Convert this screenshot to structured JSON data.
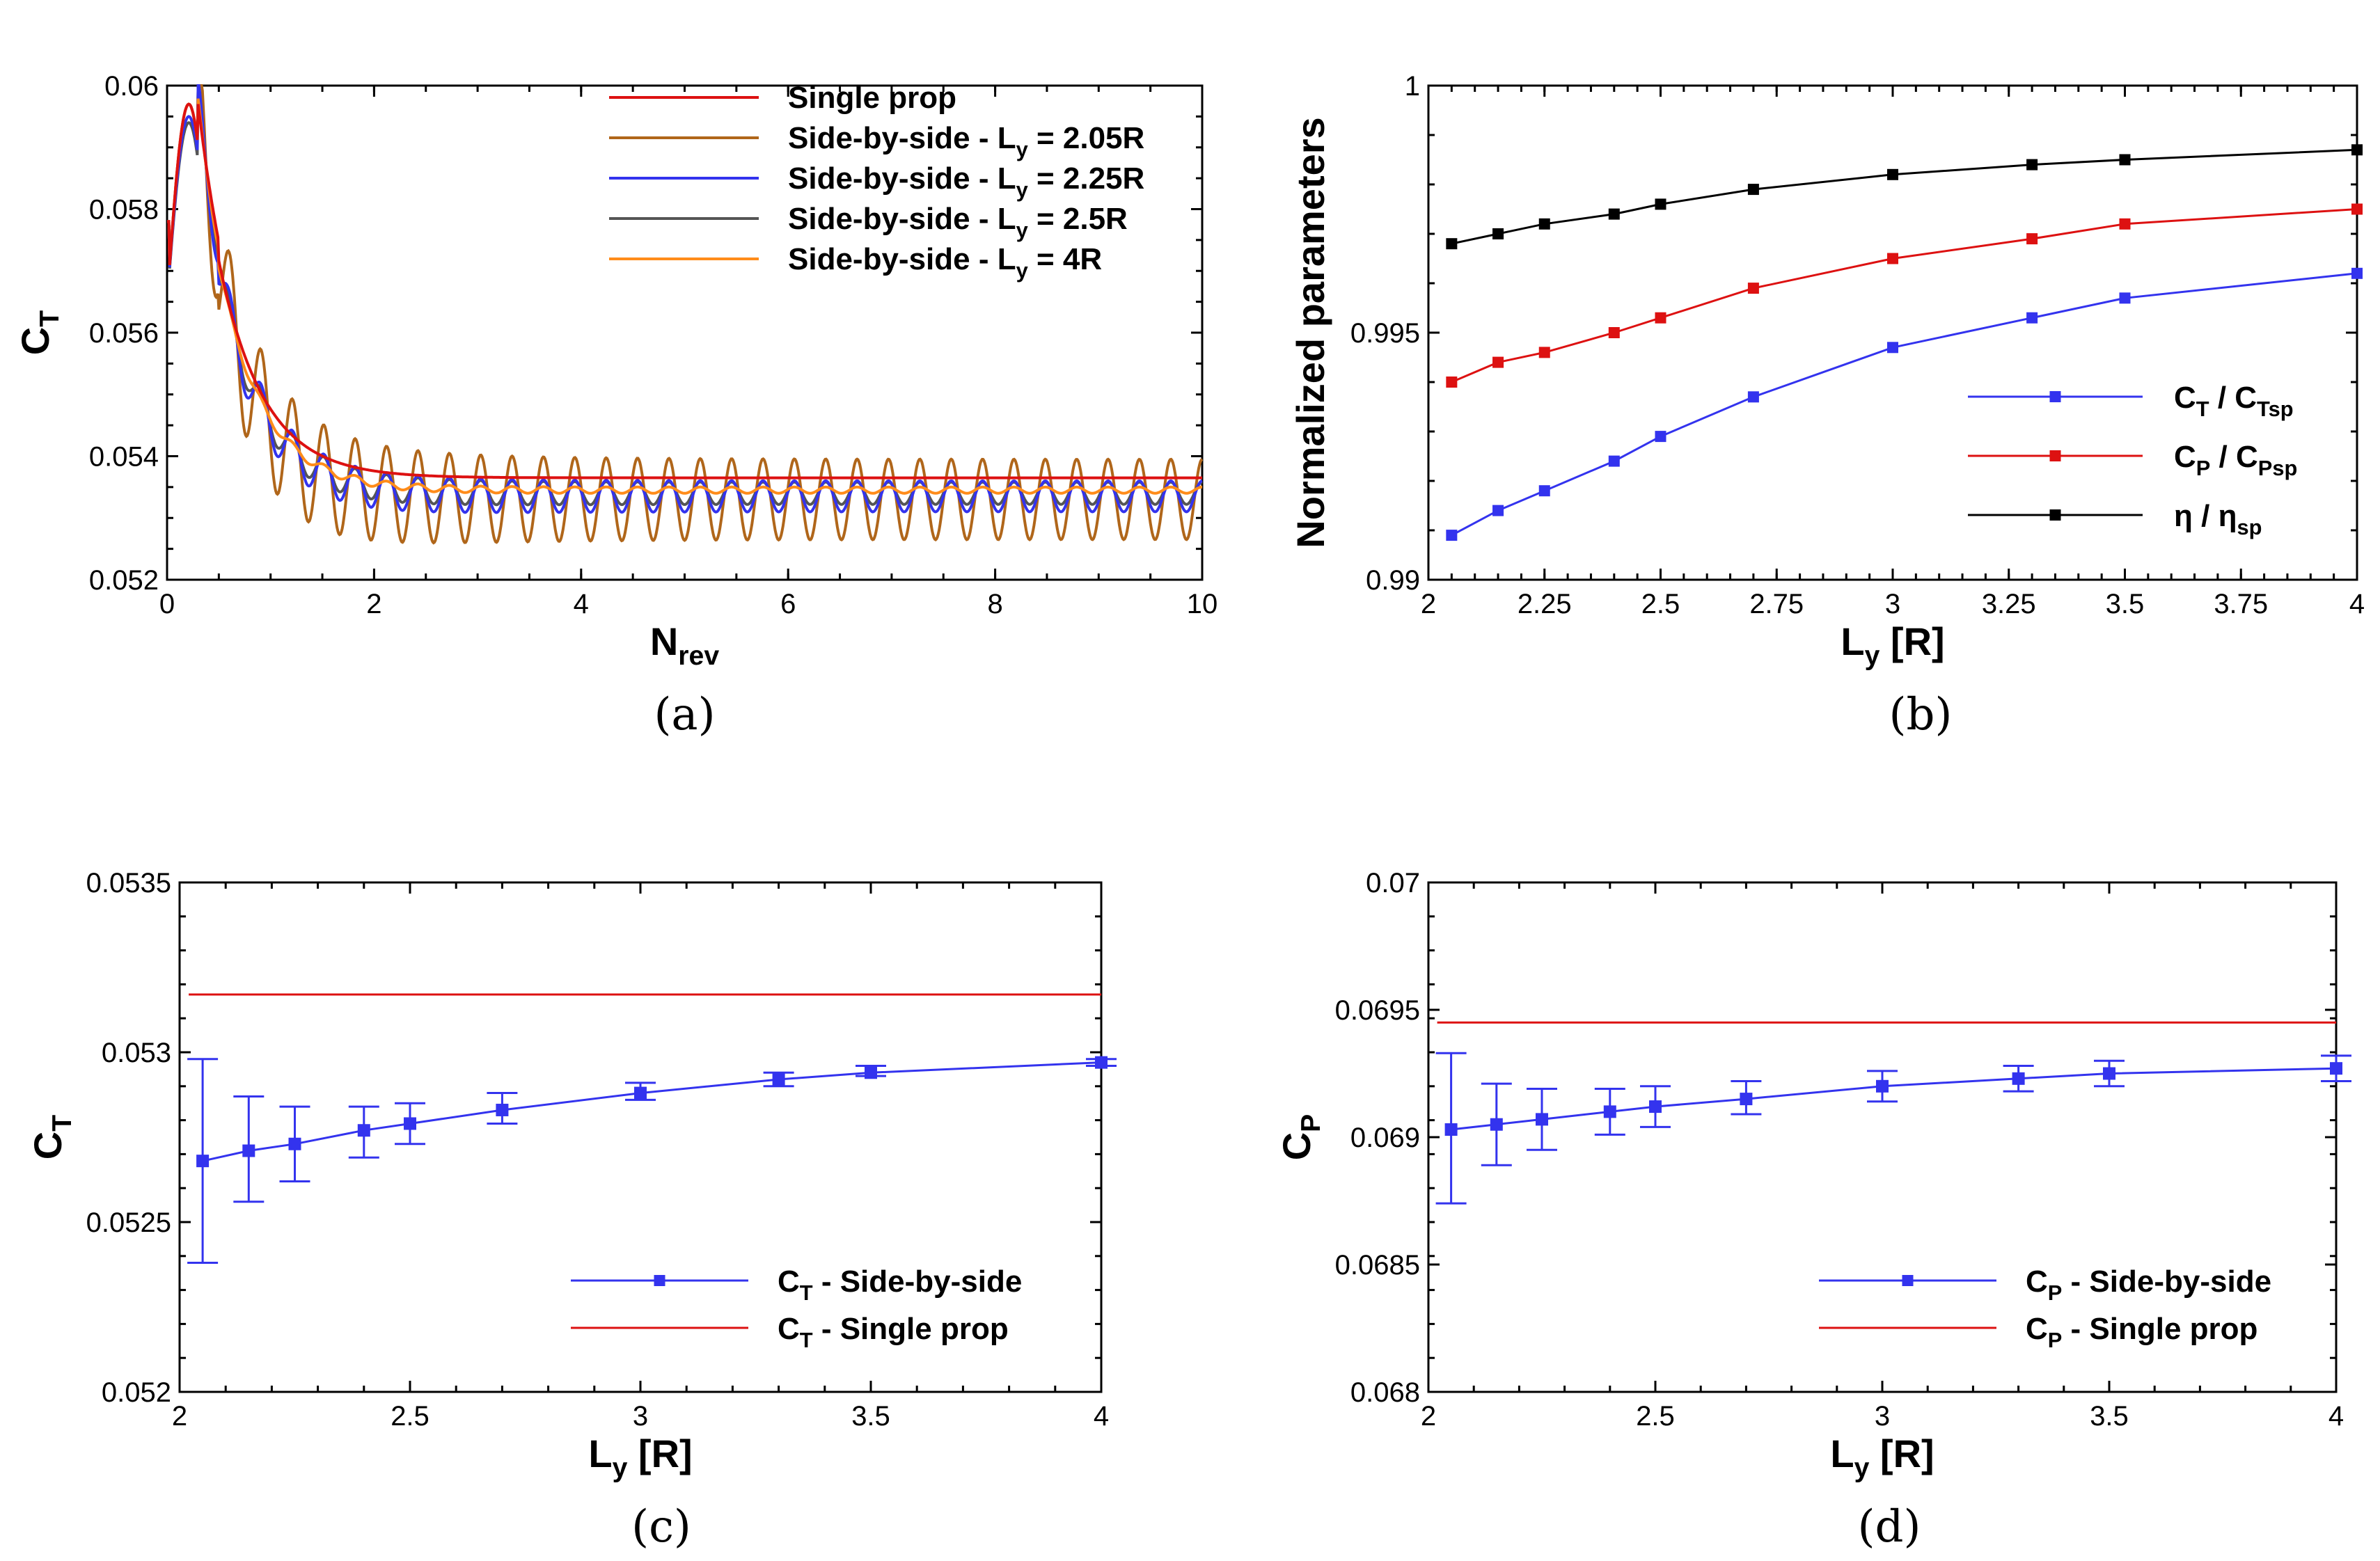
{
  "panels": {
    "a": {
      "caption": "(a)",
      "xlabel": {
        "main": "N",
        "sub": "rev"
      },
      "ylabel": {
        "main": "C",
        "sub": "T"
      },
      "xticks": [
        "0",
        "2",
        "4",
        "6",
        "8",
        "10"
      ],
      "yticks": [
        "0.052",
        "0.054",
        "0.056",
        "0.058",
        "0.06"
      ],
      "legend": [
        {
          "pre": "Single prop",
          "sub": "",
          "post": ""
        },
        {
          "pre": "Side-by-side - L",
          "sub": "y",
          "post": " = 2.05R"
        },
        {
          "pre": "Side-by-side - L",
          "sub": "y",
          "post": " = 2.25R"
        },
        {
          "pre": "Side-by-side - L",
          "sub": "y",
          "post": " = 2.5R"
        },
        {
          "pre": "Side-by-side - L",
          "sub": "y",
          "post": " = 4R"
        }
      ]
    },
    "b": {
      "caption": "(b)",
      "xlabel": {
        "main": "L",
        "sub": "y",
        "post": " [R]"
      },
      "ylabel": {
        "main": "Normalized parameters"
      },
      "xticks": [
        "2",
        "2.25",
        "2.5",
        "2.75",
        "3",
        "3.25",
        "3.5",
        "3.75",
        "4"
      ],
      "yticks": [
        "0.99",
        "0.995",
        "1"
      ],
      "legend": [
        {
          "pre": "C",
          "sub": "T",
          "mid": " / C",
          "sub2": "Tsp"
        },
        {
          "pre": "C",
          "sub": "P",
          "mid": " / C",
          "sub2": "Psp"
        },
        {
          "pre": "η",
          "sub": "",
          "mid": " / η",
          "sub2": "sp"
        }
      ]
    },
    "c": {
      "caption": "(c)",
      "xlabel": {
        "main": "L",
        "sub": "y",
        "post": " [R]"
      },
      "ylabel": {
        "main": "C",
        "sub": "T"
      },
      "xticks": [
        "2",
        "2.5",
        "3",
        "3.5",
        "4"
      ],
      "yticks": [
        "0.052",
        "0.0525",
        "0.053",
        "0.0535"
      ],
      "legend": [
        {
          "pre": "C",
          "sub": "T",
          "post": " - Side-by-side"
        },
        {
          "pre": "C",
          "sub": "T",
          "post": " - Single prop"
        }
      ]
    },
    "d": {
      "caption": "(d)",
      "xlabel": {
        "main": "L",
        "sub": "y",
        "post": " [R]"
      },
      "ylabel": {
        "main": "C",
        "sub": "P"
      },
      "xticks": [
        "2",
        "2.5",
        "3",
        "3.5",
        "4"
      ],
      "yticks": [
        "0.068",
        "0.0685",
        "0.069",
        "0.0695",
        "0.07"
      ],
      "legend": [
        {
          "pre": "C",
          "sub": "P",
          "post": " - Side-by-side"
        },
        {
          "pre": "C",
          "sub": "P",
          "post": " - Single prop"
        }
      ]
    }
  },
  "colors": {
    "red": "#dd1111",
    "brown": "#b0661a",
    "blue": "#3333ee",
    "gray": "#555555",
    "orange": "#ff8c1a",
    "black": "#000000"
  },
  "chart_data": [
    {
      "type": "line",
      "panel": "a",
      "xlim": [
        0,
        10
      ],
      "ylim": [
        0.052,
        0.06
      ],
      "series": [
        {
          "name": "Single prop",
          "color": "red",
          "steady": 0.05365,
          "amp": 0.0,
          "peak": 0.0597
        },
        {
          "name": "Side-by-side - Ly = 2.05R",
          "color": "brown",
          "steady": 0.0533,
          "amp": 0.00065,
          "peak": 0.0597
        },
        {
          "name": "Side-by-side - Ly = 2.25R",
          "color": "blue",
          "steady": 0.05335,
          "amp": 0.00025,
          "peak": 0.0595
        },
        {
          "name": "Side-by-side - Ly = 2.5R",
          "color": "gray",
          "steady": 0.0534,
          "amp": 0.00018,
          "peak": 0.0594
        },
        {
          "name": "Side-by-side - Ly = 4R",
          "color": "orange",
          "steady": 0.05345,
          "amp": 5e-05,
          "peak": 0.0597
        }
      ]
    },
    {
      "type": "line",
      "panel": "b",
      "xlim": [
        2,
        4
      ],
      "ylim": [
        0.99,
        1.0
      ],
      "x": [
        2.05,
        2.15,
        2.25,
        2.4,
        2.5,
        2.7,
        3.0,
        3.3,
        3.5,
        4.0
      ],
      "series": [
        {
          "name": "CT / CTsp",
          "color": "blue",
          "values": [
            0.9909,
            0.9914,
            0.9918,
            0.9924,
            0.9929,
            0.9937,
            0.9947,
            0.9953,
            0.9957,
            0.9962
          ]
        },
        {
          "name": "CP / CPsp",
          "color": "red",
          "values": [
            0.994,
            0.9944,
            0.9946,
            0.995,
            0.9953,
            0.9959,
            0.9965,
            0.9969,
            0.9972,
            0.9975
          ]
        },
        {
          "name": "η / ηsp",
          "color": "black",
          "values": [
            0.9968,
            0.997,
            0.9972,
            0.9974,
            0.9976,
            0.9979,
            0.9982,
            0.9984,
            0.9985,
            0.9987
          ]
        }
      ]
    },
    {
      "type": "line",
      "panel": "c",
      "xlim": [
        2,
        4
      ],
      "ylim": [
        0.052,
        0.0535
      ],
      "x": [
        2.05,
        2.15,
        2.25,
        2.4,
        2.5,
        2.7,
        3.0,
        3.3,
        3.5,
        4.0
      ],
      "series": [
        {
          "name": "CT - Side-by-side",
          "color": "blue",
          "values": [
            0.05268,
            0.05271,
            0.05273,
            0.05277,
            0.05279,
            0.05283,
            0.05288,
            0.05292,
            0.05294,
            0.05297
          ],
          "err_lo": [
            0.05238,
            0.05256,
            0.05262,
            0.05269,
            0.05273,
            0.05279,
            0.05286,
            0.0529,
            0.05293,
            0.05296
          ],
          "err_hi": [
            0.05298,
            0.05287,
            0.05284,
            0.05284,
            0.05285,
            0.05288,
            0.05291,
            0.05294,
            0.05296,
            0.05298
          ]
        },
        {
          "name": "CT - Single prop",
          "color": "red",
          "constant": 0.05317
        }
      ]
    },
    {
      "type": "line",
      "panel": "d",
      "xlim": [
        2,
        4
      ],
      "ylim": [
        0.068,
        0.07
      ],
      "x": [
        2.05,
        2.15,
        2.25,
        2.4,
        2.5,
        2.7,
        3.0,
        3.3,
        3.5,
        4.0
      ],
      "series": [
        {
          "name": "CP - Side-by-side",
          "color": "blue",
          "values": [
            0.06903,
            0.06905,
            0.06907,
            0.0691,
            0.06912,
            0.06915,
            0.0692,
            0.06923,
            0.06925,
            0.06927
          ],
          "err_lo": [
            0.06874,
            0.06889,
            0.06895,
            0.06901,
            0.06904,
            0.06909,
            0.06914,
            0.06918,
            0.0692,
            0.06922
          ],
          "err_hi": [
            0.06933,
            0.06921,
            0.06919,
            0.06919,
            0.0692,
            0.06922,
            0.06926,
            0.06928,
            0.0693,
            0.06932
          ]
        },
        {
          "name": "CP - Single prop",
          "color": "red",
          "constant": 0.06945
        }
      ]
    }
  ]
}
